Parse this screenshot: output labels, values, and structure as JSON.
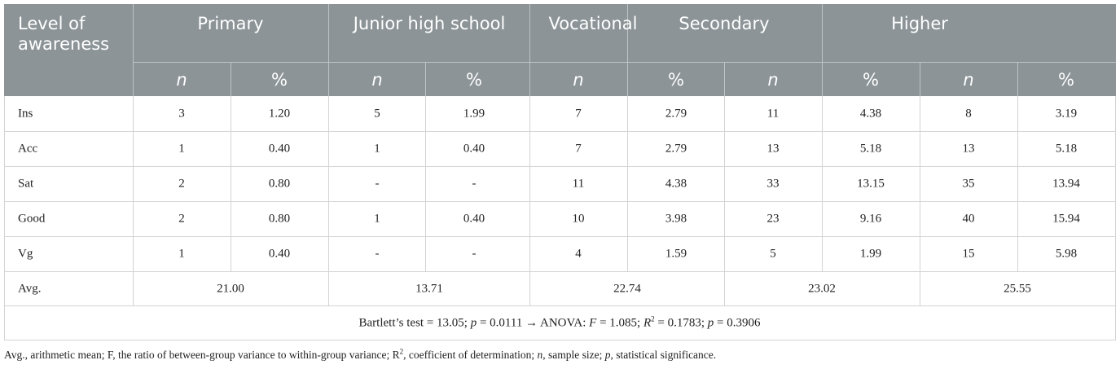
{
  "header": {
    "level_line1": "Level of",
    "level_line2": "awareness",
    "groups": [
      "Primary",
      "Junior high school",
      "Vocational",
      "Secondary",
      "Higher"
    ],
    "sub": [
      "n",
      "%",
      "n",
      "%",
      "n",
      "%",
      "n",
      "%",
      "n",
      "%"
    ]
  },
  "rows": [
    {
      "label": "Ins",
      "cells": [
        "3",
        "1.20",
        "5",
        "1.99",
        "7",
        "2.79",
        "11",
        "4.38",
        "8",
        "3.19"
      ]
    },
    {
      "label": "Acc",
      "cells": [
        "1",
        "0.40",
        "1",
        "0.40",
        "7",
        "2.79",
        "13",
        "5.18",
        "13",
        "5.18"
      ]
    },
    {
      "label": "Sat",
      "cells": [
        "2",
        "0.80",
        "-",
        "-",
        "11",
        "4.38",
        "33",
        "13.15",
        "35",
        "13.94"
      ]
    },
    {
      "label": "Good",
      "cells": [
        "2",
        "0.80",
        "1",
        "0.40",
        "10",
        "3.98",
        "23",
        "9.16",
        "40",
        "15.94"
      ]
    },
    {
      "label": "Vg",
      "cells": [
        "1",
        "0.40",
        "-",
        "-",
        "4",
        "1.59",
        "5",
        "1.99",
        "15",
        "5.98"
      ]
    }
  ],
  "avg": {
    "label": "Avg.",
    "values": [
      "21.00",
      "13.71",
      "22.74",
      "23.02",
      "25.55"
    ]
  },
  "stats": {
    "bartlett": "Bartlett’s test = 13.05; ",
    "p1_sym": "p",
    "p1_val": " = 0.0111 →  ANOVA: ",
    "f_sym": "F",
    "f_val": " = 1.085; ",
    "r_sym": "R",
    "r_sup": "2",
    "r_val": " = 0.1783; ",
    "p2_sym": "p",
    "p2_val": " = 0.3906"
  },
  "note": {
    "a": "Avg., arithmetic mean; F, the ratio of between-group variance to within-group variance; R",
    "sup": "2",
    "b": ", coefficient of determination; ",
    "n": "n",
    "c": ", sample size; ",
    "p": "p",
    "d": ", statistical significance."
  }
}
